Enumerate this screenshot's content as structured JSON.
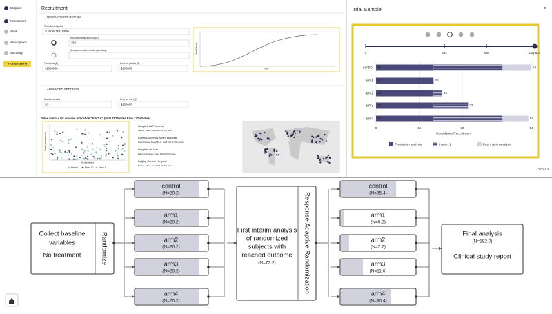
{
  "sidebar": {
    "items": [
      "Endpoint",
      "Recruitment",
      "Arms",
      "Assumptions",
      "Summary"
    ],
    "button": "STUDIES (BETA)"
  },
  "recruitment": {
    "title": "Recruitment",
    "details_header": "RECRUITMENT DETAILS",
    "profile_label": "Recruitment profile",
    "profile_value": "S (slow, fast, slow)",
    "option_1_label": "Recruitment duration (days)",
    "option_1_value": "750",
    "option_2_label": "Average recruitment rate (sites/day)",
    "cost_label": "Fixed cost ($)",
    "cost_value": "$1000000",
    "site_cost_label": "Cost per patient ($)",
    "site_cost_value": "$100000",
    "curve_y_label": "Total Subjects",
    "curve_x_label": "Time",
    "advanced_header": "ADVANCED SETTINGS",
    "sites_label": "Number of sites",
    "sites_value": "50",
    "site_fee_label": "Cost per site ($)",
    "site_fee_value": "$100000",
    "sites_title": "Sites metrics for disease indication \"NSCLC\" (total 7979 sites from 137 studies)",
    "scatter_y_label": "Monthly recruitment rate",
    "scatter_x_label": "Number of sites",
    "scatter_legend": [
      "Phase 2",
      "Phase 1/2",
      "Phase 3"
    ],
    "hospitals": [
      {
        "name": "Hospital La Princesa",
        "detail": "Madrid, Spain. used 105 (0.3%) times"
      },
      {
        "name": "Korea University Anam Hospital",
        "detail": "Seoul, Korea, Republic of. used 115 (0.4%) times"
      },
      {
        "name": "Hospital del Mar",
        "detail": "Barcelona, Spain. used 105 (0.3%) times"
      },
      {
        "name": "Beijing Cancer Hospital",
        "detail": "Beijing, China. used 101 (0.3%) times"
      }
    ]
  },
  "chart_data": {
    "type": "stacked-bar-horizontal",
    "title": "Trial Sample",
    "close": "×",
    "timeline": {
      "lim": [
        0,
        820
      ],
      "ticks": [
        0,
        382,
        586,
        {
          "value": 820,
          "label": "Day 820"
        }
      ]
    },
    "categories": [
      "control",
      "arm1",
      "arm2",
      "arm3",
      "arm4"
    ],
    "series": [
      {
        "name": "Pre interim analysis",
        "color": "#4a4979",
        "values": [
          20,
          20,
          20,
          20,
          20
        ]
      },
      {
        "name": "Interim 1",
        "color": "#5b5a84",
        "values": [
          24,
          0,
          3,
          12,
          24
        ]
      },
      {
        "name": "Post interim analysis",
        "color": "#d4d3e1",
        "values": [
          10,
          0,
          0,
          0,
          9
        ]
      }
    ],
    "totals": [
      54,
      20,
      23,
      32,
      53
    ],
    "xlim": [
      0,
      54
    ],
    "xticks": [
      0,
      15,
      30,
      54
    ],
    "xlabel": "Cumulative Recruitment",
    "grid": true,
    "details": "DETAILS"
  },
  "diagram": {
    "start": {
      "lines": [
        "Collect baseline",
        "variables"
      ],
      "note": "No treatment",
      "step": "Randomize"
    },
    "arms_before": [
      {
        "name": "control",
        "n_label": "(N=20.2)"
      },
      {
        "name": "arm1",
        "n_label": "(N=20.2)"
      },
      {
        "name": "arm2",
        "n_label": "(N=20.2)"
      },
      {
        "name": "arm3",
        "n_label": "(N=20.2)"
      },
      {
        "name": "arm4",
        "n_label": "(N=20.2)"
      }
    ],
    "interim": {
      "lines": [
        "First interim analysis",
        "of randomized",
        "subjects with",
        "reached outcome"
      ],
      "n_label": "(N=72.2)",
      "step": "Response Adaptive Randomization"
    },
    "arms_after": [
      {
        "name": "control",
        "n_label": "(N=35.4)"
      },
      {
        "name": "arm1",
        "n_label": "(N=0.8)"
      },
      {
        "name": "arm2",
        "n_label": "(N=2.7)"
      },
      {
        "name": "arm3",
        "n_label": "(N=11.6)"
      },
      {
        "name": "arm4",
        "n_label": "(N=30.4)"
      }
    ],
    "final": {
      "title": "Final analysis",
      "n_label": "(N=182.0)",
      "note": "Clinical study report"
    }
  }
}
